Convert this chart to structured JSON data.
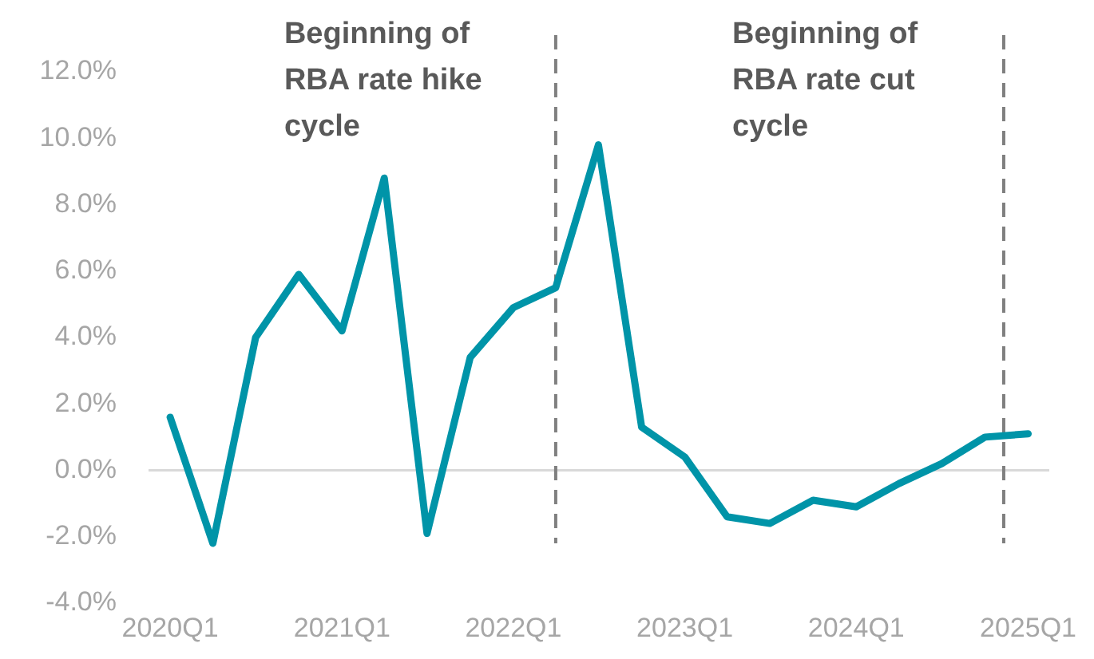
{
  "chart_data": {
    "type": "line",
    "x": [
      "2020-01",
      "2020-04",
      "2020-07",
      "2020-10",
      "2021-01",
      "2021-04",
      "2021-07",
      "2021-10",
      "2022-01",
      "2022-04",
      "2022-07",
      "2022-10",
      "2023-01",
      "2023-04",
      "2023-07",
      "2023-10",
      "2024-01",
      "2024-04",
      "2024-07",
      "2024-10",
      "2025-01"
    ],
    "series": [
      {
        "color": "#0094a8",
        "values": [
          1.6,
          -2.2,
          4.0,
          5.9,
          4.2,
          8.8,
          -1.9,
          3.4,
          4.9,
          5.5,
          9.8,
          1.3,
          0.4,
          -1.4,
          -1.6,
          -0.9,
          -1.1,
          -0.4,
          0.2,
          1.0,
          1.1
        ]
      }
    ],
    "xlim": [
      "2019-11-16",
      "2025-02-15"
    ],
    "xticks": [
      {
        "value": "2020-01",
        "label": "2020Q1"
      },
      {
        "value": "2021-01",
        "label": "2021Q1"
      },
      {
        "value": "2022-01",
        "label": "2022Q1"
      },
      {
        "value": "2023-01",
        "label": "2023Q1"
      },
      {
        "value": "2024-01",
        "label": "2024Q1"
      },
      {
        "value": "2025-01",
        "label": "2025Q1"
      }
    ],
    "ylim": [
      -4,
      12
    ],
    "yticks": [
      {
        "value": -4,
        "label": "-4.0%"
      },
      {
        "value": -2,
        "label": "-2.0%"
      },
      {
        "value": 0,
        "label": "0.0%"
      },
      {
        "value": 2,
        "label": "2.0%"
      },
      {
        "value": 4,
        "label": "4.0%"
      },
      {
        "value": 6,
        "label": "6.0%"
      },
      {
        "value": 8,
        "label": "8.0%"
      },
      {
        "value": 10,
        "label": "10.0%"
      },
      {
        "value": 12,
        "label": "12.0%"
      }
    ],
    "ref_lines": [
      {
        "axis": "y",
        "value": 0,
        "color": "#d9d9d9",
        "line_style": "solid"
      },
      {
        "axis": "x",
        "value": "2022-04",
        "label": "Beginning of RBA rate hike cycle",
        "color": "#7f7f7f",
        "line_style": "dashed"
      },
      {
        "axis": "x",
        "value": "2024-11-10",
        "label": "Beginning of RBA rate cut cycle",
        "color": "#7f7f7f",
        "line_style": "dashed"
      }
    ],
    "grid": false,
    "legend": false,
    "marker": "none",
    "line_style": "solid"
  }
}
